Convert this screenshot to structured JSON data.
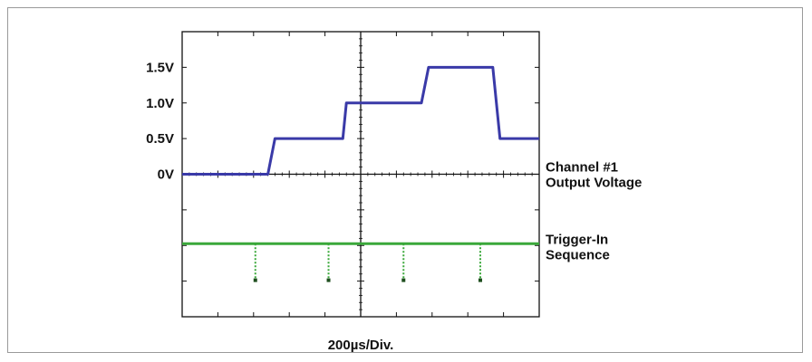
{
  "chart_data": {
    "type": "line",
    "xlabel": "200µs/Div.",
    "x_divisions": 10,
    "y_tick_labels": [
      "1.5V",
      "1.0V",
      "0.5V",
      "0V"
    ],
    "series": [
      {
        "name": "Channel #1 Output Voltage",
        "color": "#3a3aa8",
        "x": [
          0,
          2.4,
          2.6,
          4.5,
          4.6,
          6.7,
          6.9,
          8.7,
          8.9,
          10
        ],
        "y": [
          0,
          0,
          0.5,
          0.5,
          1.0,
          1.0,
          1.5,
          1.5,
          0.5,
          0.5
        ]
      },
      {
        "name": "Trigger-In Sequence",
        "color": "#3aa83a",
        "baseline_level": -1,
        "pulse_level": -2,
        "pulses_at": [
          2.05,
          4.1,
          6.2,
          8.35
        ]
      }
    ],
    "right_labels": [
      {
        "lines": [
          "Channel #1",
          "Output Voltage"
        ]
      },
      {
        "lines": [
          "Trigger-In",
          "Sequence"
        ]
      }
    ]
  }
}
